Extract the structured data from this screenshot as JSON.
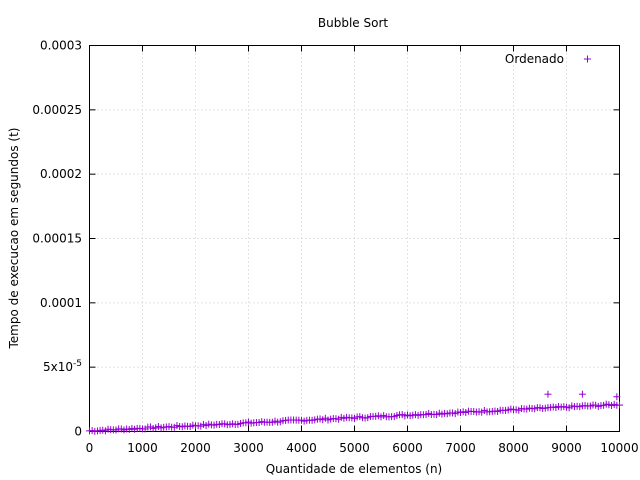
{
  "chart_data": {
    "type": "scatter",
    "title": "Bubble Sort",
    "xlabel": "Quantidade de elementos (n)",
    "ylabel": "Tempo de execucao em segundos (t)",
    "xlim": [
      0,
      10000
    ],
    "ylim": [
      0,
      0.0003
    ],
    "x_ticks": [
      0,
      1000,
      2000,
      3000,
      4000,
      5000,
      6000,
      7000,
      8000,
      9000,
      10000
    ],
    "x_tick_labels": [
      "0",
      "1000",
      "2000",
      "3000",
      "4000",
      "5000",
      "6000",
      "7000",
      "8000",
      "9000",
      "10000"
    ],
    "y_ticks": [
      0,
      5e-05,
      0.0001,
      0.00015,
      0.0002,
      0.00025,
      0.0003
    ],
    "y_tick_labels": [
      "0",
      "5x10",
      "0.0001",
      "0.00015",
      "0.0002",
      "0.00025",
      "0.0003"
    ],
    "y_tick_superscripts": [
      "",
      "-5",
      "",
      "",
      "",
      "",
      ""
    ],
    "grid": true,
    "legend_position": "top-right",
    "series": [
      {
        "name": "Ordenado",
        "color": "#9400d3",
        "marker": "+",
        "trend": {
          "x0": 0,
          "y0": 5e-07,
          "x1": 10000,
          "y1": 2.1e-05
        },
        "x_min": 0,
        "x_max": 10000,
        "x_step": 50,
        "outliers": [
          {
            "x": 8650,
            "y": 2.9e-05
          },
          {
            "x": 9300,
            "y": 2.9e-05
          },
          {
            "x": 9950,
            "y": 2.7e-05
          }
        ]
      }
    ]
  }
}
